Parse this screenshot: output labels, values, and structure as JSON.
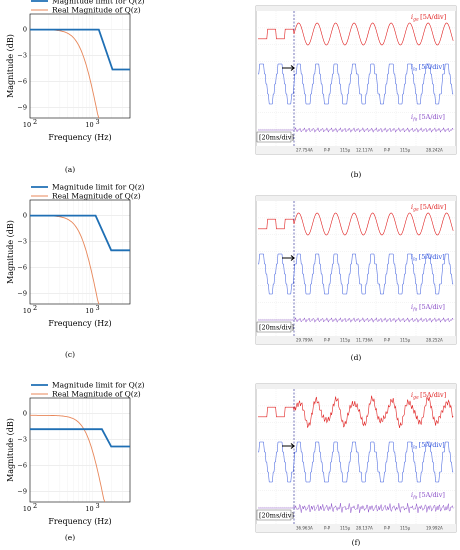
{
  "figure": {
    "plots": [
      {
        "caption": "(a)",
        "legend_blue": "Magnitude limit for Q(z)",
        "legend_orange": "Real Magnitude of Q(z)",
        "xlabel": "Frequency (Hz)",
        "ylabel": "Magnitude (dB)",
        "yticks": [
          "0",
          "−3",
          "−6",
          "−9"
        ],
        "xticks": [
          "10",
          "10"
        ],
        "xtick_exp": [
          "2",
          "3"
        ]
      },
      {
        "caption": "(c)",
        "legend_blue": "Magnitude limit for Q(z)",
        "legend_orange": "Real Magnitude of Q(z)",
        "xlabel": "Frequency (Hz)",
        "ylabel": "Magnitude (dB)",
        "yticks": [
          "0",
          "−3",
          "−6",
          "−9"
        ],
        "xticks": [
          "10",
          "10"
        ],
        "xtick_exp": [
          "2",
          "3"
        ]
      },
      {
        "caption": "(e)",
        "legend_blue": "Magnitude limit for Q(z)",
        "legend_orange": "Real Magnitude of Q(z)",
        "xlabel": "Frequency (Hz)",
        "ylabel": "Magnitude (dB)",
        "yticks": [
          "0",
          "−3",
          "−6",
          "−9"
        ],
        "xticks": [
          "10",
          "10"
        ],
        "xtick_exp": [
          "2",
          "3"
        ]
      }
    ],
    "scopes": [
      {
        "caption": "(b)",
        "ch1": "i",
        "ch1_sub": "ga",
        "ch1_unit": "[5A/div]",
        "ch2": "i",
        "ch2_sub": "la",
        "ch2_unit": "[5A/div]",
        "ch3": "i",
        "ch3_sub": "fa",
        "ch3_unit": "[5A/div]",
        "timebase": "[20ms/div]",
        "bottom": [
          "27.754A",
          "P-P",
          "115μ",
          "12.117A",
          "P-P",
          "115μ",
          "28.242A"
        ]
      },
      {
        "caption": "(d)",
        "ch1": "i",
        "ch1_sub": "ga",
        "ch1_unit": "[5A/div]",
        "ch2": "i",
        "ch2_sub": "la",
        "ch2_unit": "[5A/div]",
        "ch3": "i",
        "ch3_sub": "fa",
        "ch3_unit": "[5A/div]",
        "timebase": "[20ms/div]",
        "bottom": [
          "29.799A",
          "P-P",
          "115μ",
          "11.736A",
          "P-P",
          "115μ",
          "28.252A"
        ]
      },
      {
        "caption": "(f)",
        "ch1": "i",
        "ch1_sub": "ga",
        "ch1_unit": "[5A/div]",
        "ch2": "i",
        "ch2_sub": "la",
        "ch2_unit": "[5A/div]",
        "ch3": "i",
        "ch3_sub": "fa",
        "ch3_unit": "[5A/div]",
        "timebase": "[20ms/div]",
        "bottom": [
          "36.963A",
          "P-P",
          "115μ",
          "28.137A",
          "P-P",
          "115μ",
          "19.992A"
        ]
      }
    ]
  },
  "colors": {
    "blue": "#1f6fb4",
    "orange": "#e8875a",
    "red": "#e02020",
    "scope_blue": "#3355dd",
    "purple": "#8a4fc8"
  }
}
